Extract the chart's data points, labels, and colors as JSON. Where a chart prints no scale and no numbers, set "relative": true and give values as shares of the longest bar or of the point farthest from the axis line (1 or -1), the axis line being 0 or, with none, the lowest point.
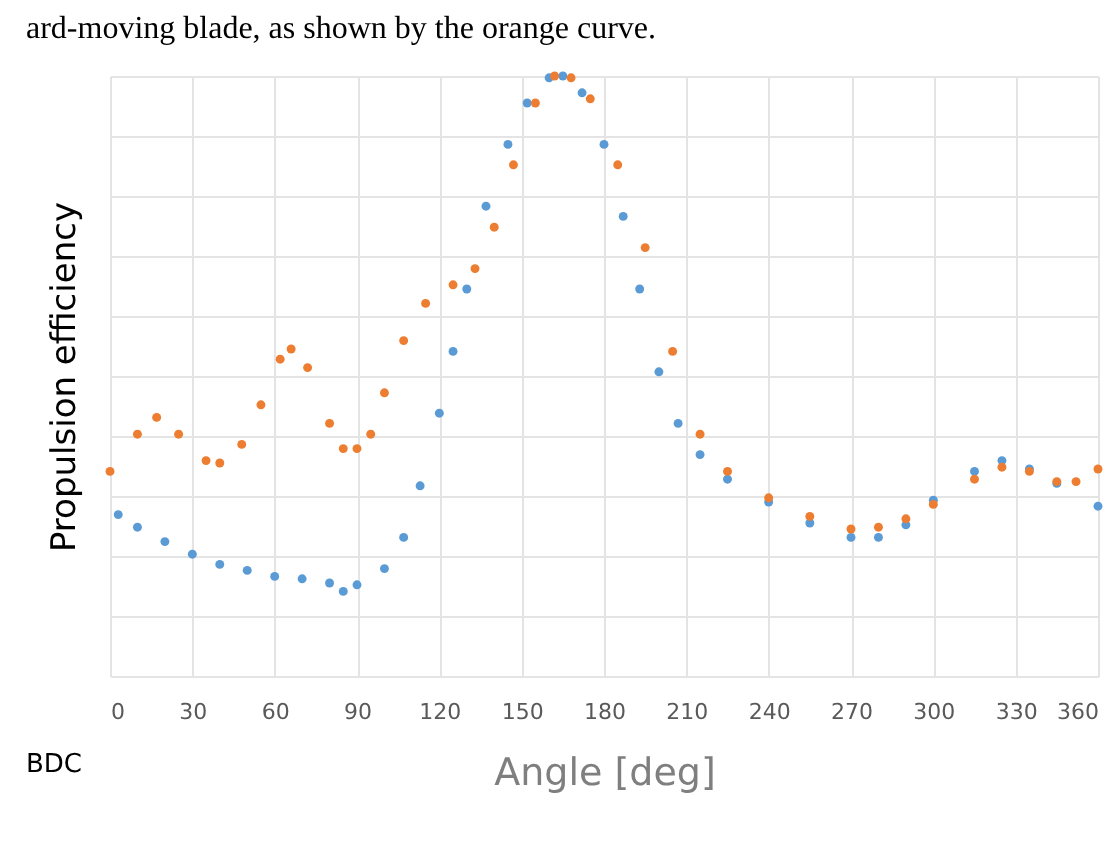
{
  "chart_data": {
    "type": "scatter",
    "xlabel": "Angle [deg]",
    "ylabel": "Propulsion efficiency",
    "relative": true,
    "xlim": [
      0,
      360
    ],
    "xticks": [
      0,
      30,
      60,
      90,
      120,
      150,
      180,
      210,
      240,
      270,
      300,
      330,
      360
    ],
    "grid": true,
    "marker": "circle",
    "annotations": [
      "ard-moving blade, as shown by the orange curve.",
      "BDC"
    ],
    "series": [
      {
        "color": "#5b9bd5",
        "x": [
          3,
          10,
          20,
          30,
          40,
          50,
          60,
          70,
          80,
          85,
          90,
          100,
          107,
          113,
          120,
          125,
          130,
          137,
          145,
          152,
          160,
          165,
          172,
          180,
          187,
          193,
          200,
          207,
          215,
          225,
          240,
          255,
          270,
          280,
          290,
          300,
          315,
          325,
          335,
          345,
          360
        ],
        "values": [
          0.269,
          0.248,
          0.224,
          0.203,
          0.186,
          0.176,
          0.166,
          0.162,
          0.155,
          0.141,
          0.152,
          0.179,
          0.231,
          0.317,
          0.438,
          0.541,
          0.645,
          0.783,
          0.886,
          0.955,
          0.997,
          1.0,
          0.972,
          0.886,
          0.766,
          0.645,
          0.507,
          0.421,
          0.369,
          0.328,
          0.29,
          0.255,
          0.231,
          0.231,
          0.252,
          0.293,
          0.341,
          0.359,
          0.345,
          0.321,
          0.283
        ]
      },
      {
        "color": "#ed7d31",
        "x": [
          0,
          10,
          17,
          25,
          35,
          40,
          48,
          55,
          62,
          66,
          72,
          80,
          85,
          90,
          95,
          100,
          107,
          115,
          125,
          133,
          140,
          147,
          155,
          162,
          168,
          175,
          185,
          195,
          205,
          215,
          225,
          240,
          255,
          270,
          280,
          290,
          300,
          315,
          325,
          335,
          345,
          352,
          360
        ],
        "values": [
          0.341,
          0.403,
          0.431,
          0.403,
          0.359,
          0.355,
          0.386,
          0.452,
          0.528,
          0.545,
          0.514,
          0.421,
          0.379,
          0.379,
          0.403,
          0.472,
          0.559,
          0.621,
          0.652,
          0.679,
          0.748,
          0.852,
          0.955,
          1.0,
          0.997,
          0.962,
          0.852,
          0.714,
          0.541,
          0.403,
          0.341,
          0.297,
          0.266,
          0.245,
          0.248,
          0.262,
          0.286,
          0.328,
          0.348,
          0.341,
          0.324,
          0.324,
          0.345
        ]
      }
    ]
  }
}
